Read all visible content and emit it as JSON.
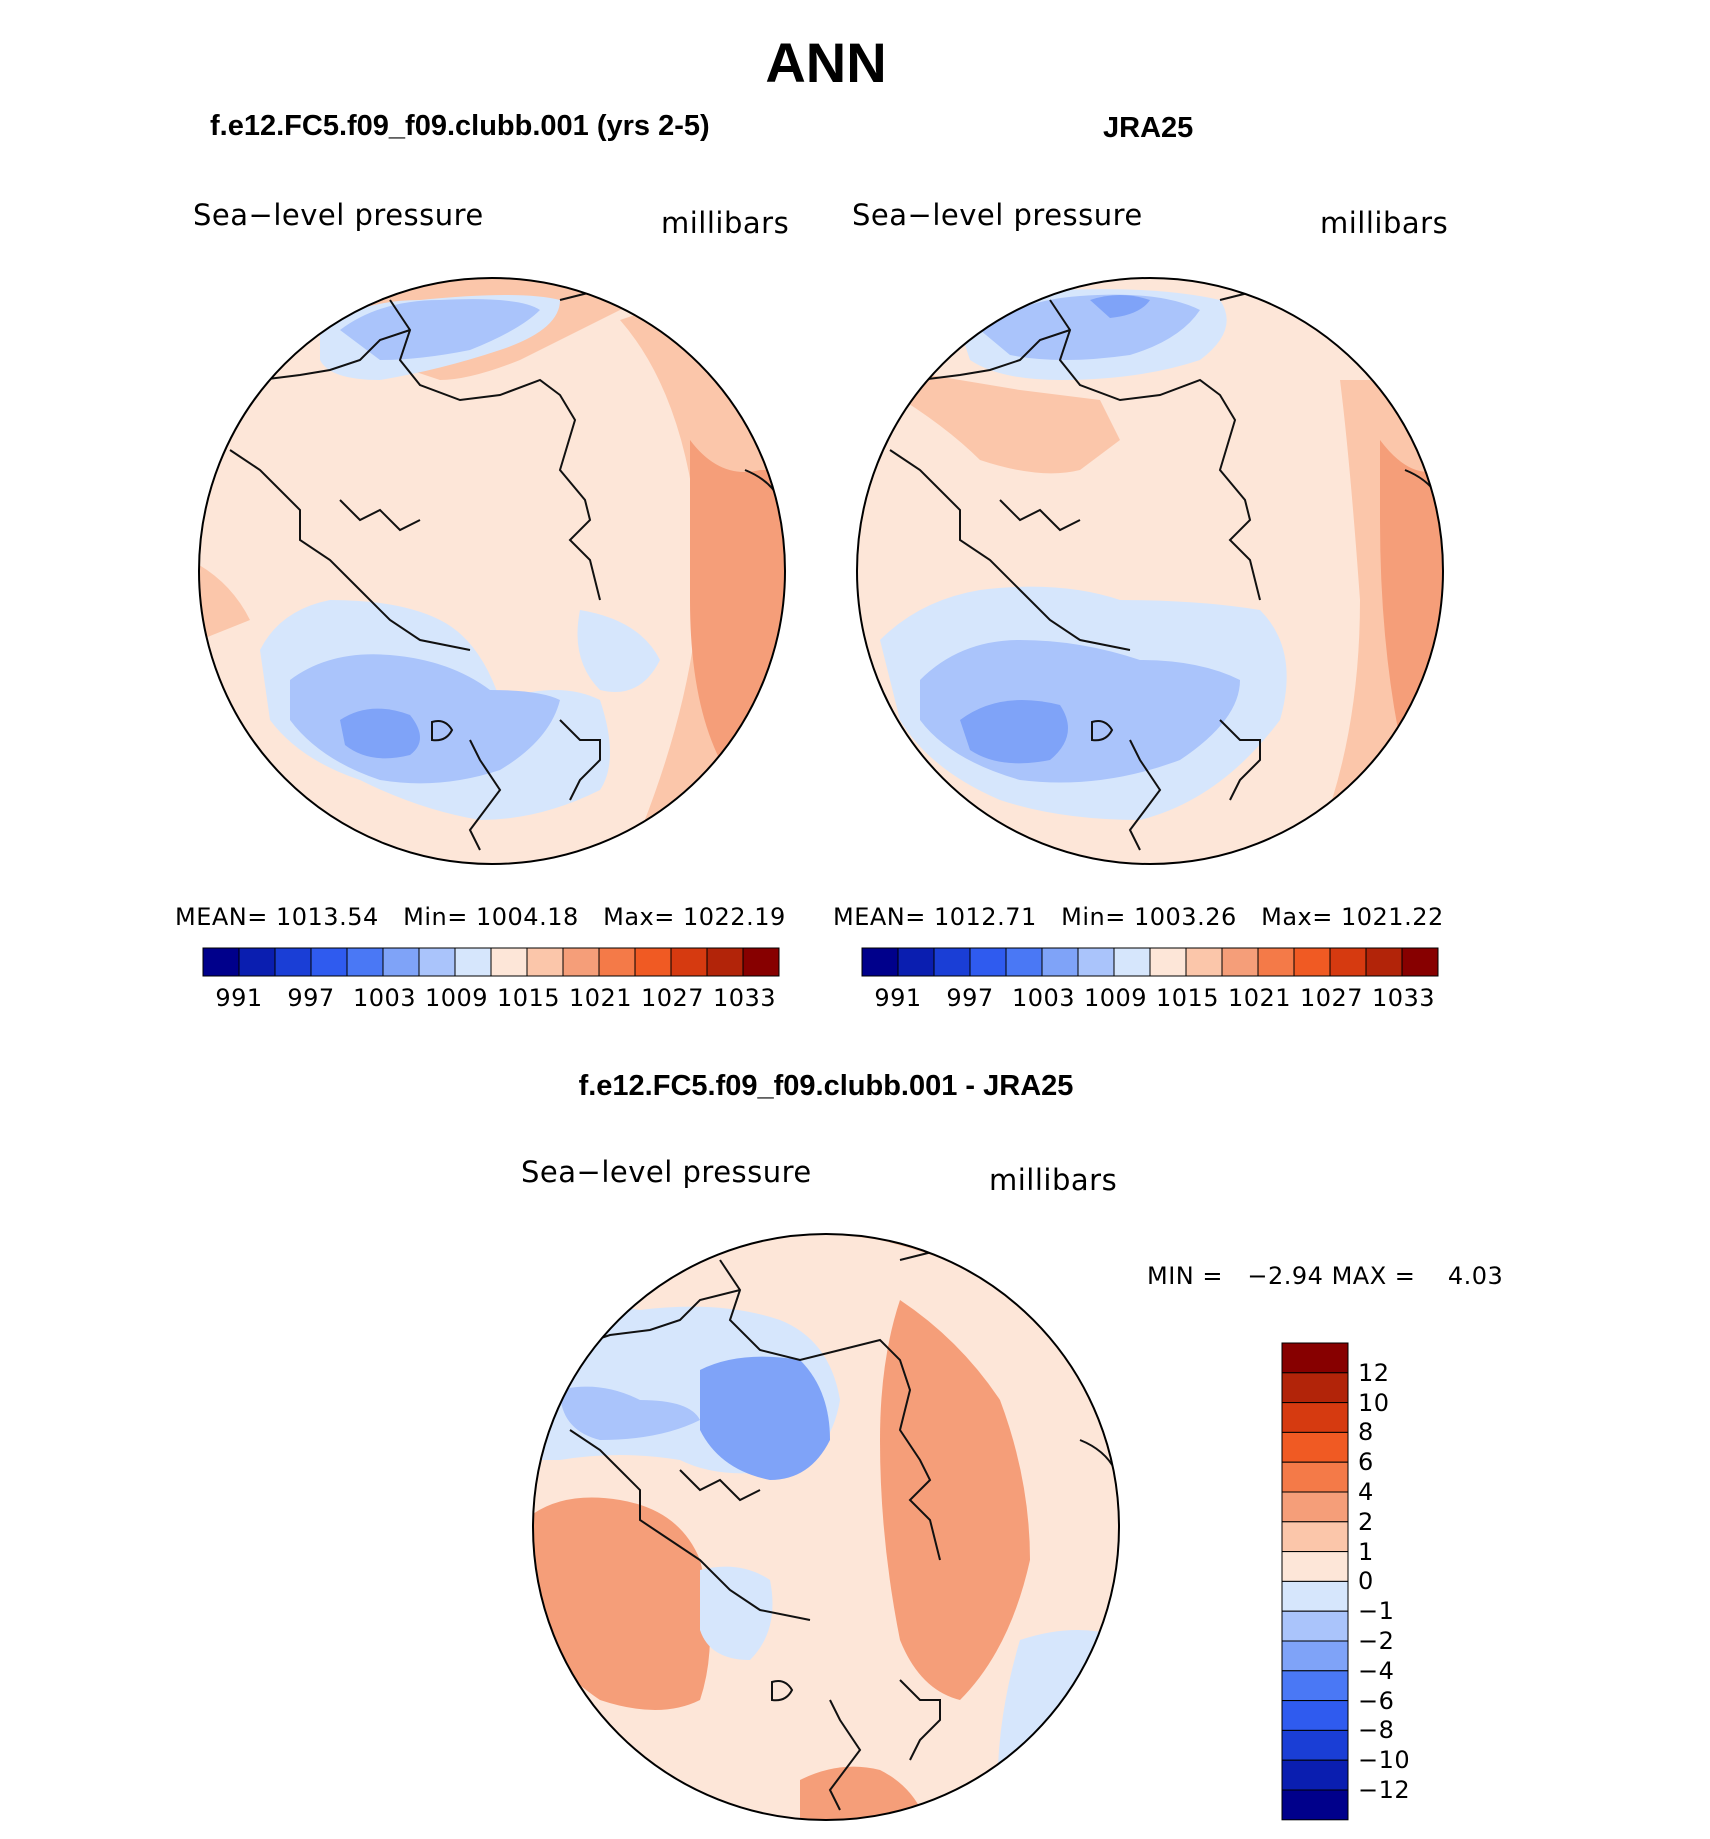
{
  "title": "ANN",
  "panels": [
    {
      "id": "model",
      "title": "f.e12.FC5.f09_f09.clubb.001 (yrs 2-5)",
      "variable": "Sea−level pressure",
      "units": "millibars",
      "stats": {
        "mean_label": "MEAN=",
        "mean": "1013.54",
        "min_label": "Min=",
        "min": "1004.18",
        "max_label": "Max=",
        "max": "1022.19"
      }
    },
    {
      "id": "obs",
      "title": "JRA25",
      "variable": "Sea−level pressure",
      "units": "millibars",
      "stats": {
        "mean_label": "MEAN=",
        "mean": "1012.71",
        "min_label": "Min=",
        "min": "1003.26",
        "max_label": "Max=",
        "max": "1021.22"
      }
    }
  ],
  "colorbar": {
    "ticks": [
      "991",
      "997",
      "1003",
      "1009",
      "1015",
      "1021",
      "1027",
      "1033"
    ],
    "colors": [
      "#00008b",
      "#0a1eb0",
      "#1a3ed6",
      "#2f5bef",
      "#4a78f5",
      "#7fa3f8",
      "#aac4fb",
      "#d6e6fc",
      "#fde6d8",
      "#fbc6aa",
      "#f59e79",
      "#f47a48",
      "#f05a23",
      "#d63a10",
      "#b22409",
      "#870000"
    ]
  },
  "difference": {
    "title": "f.e12.FC5.f09_f09.clubb.001 - JRA25",
    "variable": "Sea−level pressure",
    "units": "millibars",
    "min_label": "MIN =",
    "min": "−2.94",
    "max_label": "MAX =",
    "max": "4.03",
    "ticks": [
      "12",
      "10",
      "8",
      "6",
      "4",
      "2",
      "1",
      "0",
      "−1",
      "−2",
      "−4",
      "−6",
      "−8",
      "−10",
      "−12"
    ],
    "colors": [
      "#870000",
      "#b22409",
      "#d63a10",
      "#f05a23",
      "#f47a48",
      "#f59e79",
      "#fbc6aa",
      "#fde6d8",
      "#d6e6fc",
      "#aac4fb",
      "#7fa3f8",
      "#4a78f5",
      "#2f5bef",
      "#1a3ed6",
      "#0a1eb0",
      "#00008b"
    ]
  }
}
